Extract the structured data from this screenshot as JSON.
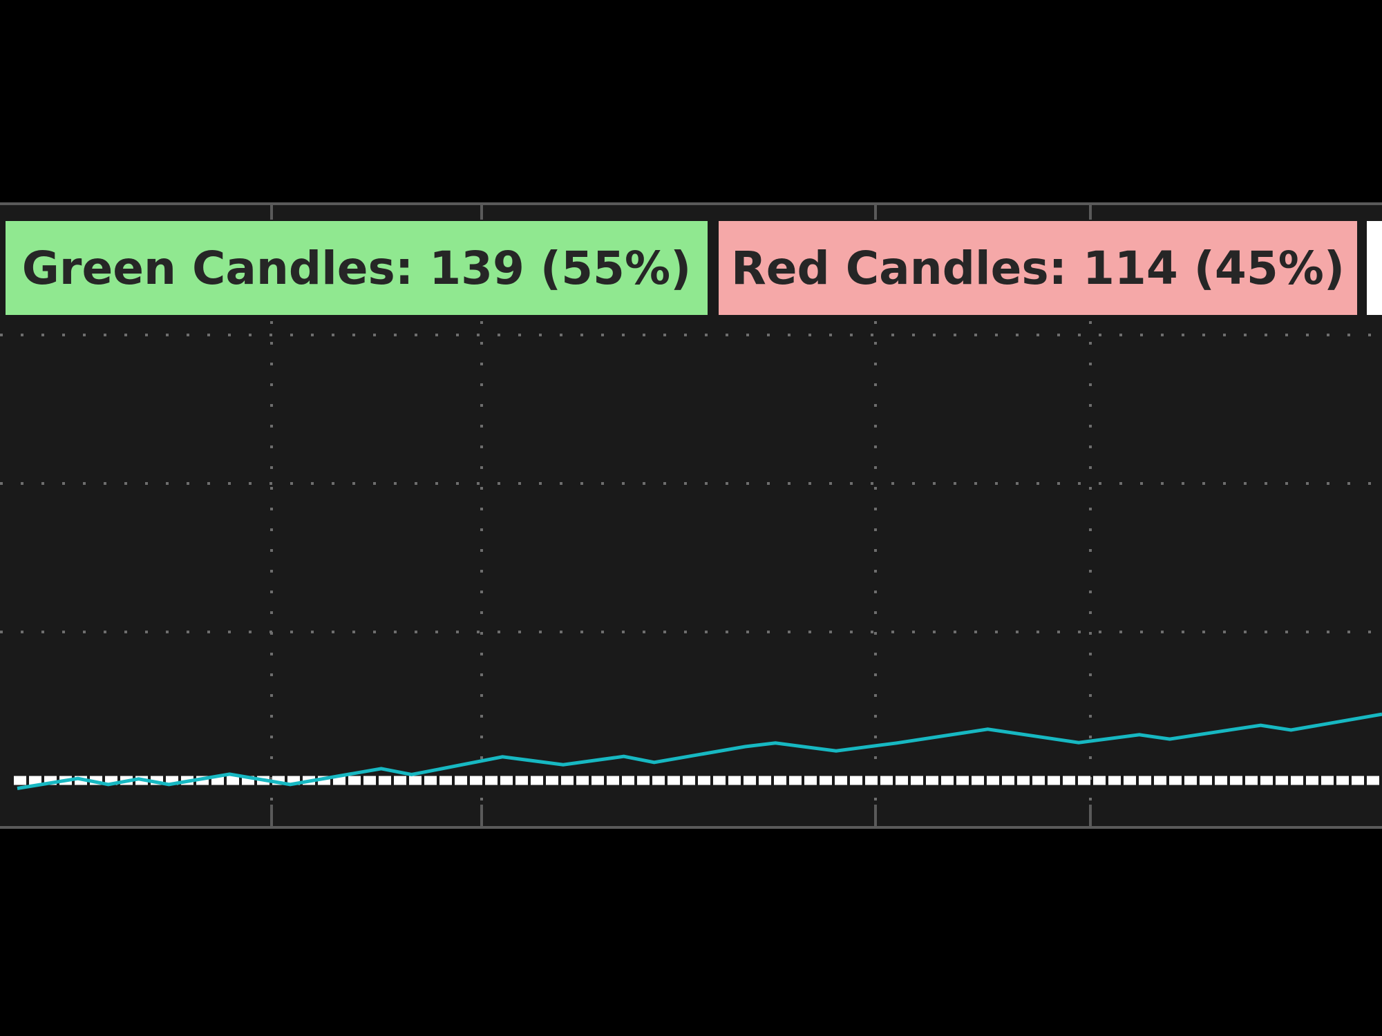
{
  "legend": {
    "green": {
      "label": "Green Candles: 139 (55%)",
      "color": "#90e890"
    },
    "red": {
      "label": "Red Candles: 114 (45%)",
      "color": "#f5a8a8"
    },
    "third_color": "#ffffff"
  },
  "colors": {
    "background": "#000000",
    "panel": "#1a1a1a",
    "frame": "#5a5a5a",
    "grid": "#6e6e6e",
    "series": "#17b8c2",
    "baseline": "#ffffff"
  },
  "chart_data": {
    "type": "line",
    "xlim": [
      0,
      45
    ],
    "ylim": [
      0,
      6
    ],
    "grid": true,
    "baseline_y": 0.7,
    "series": [
      {
        "values": [
          [
            0,
            0.5
          ],
          [
            2,
            0.75
          ],
          [
            3,
            0.6
          ],
          [
            4,
            0.74
          ],
          [
            5,
            0.6
          ],
          [
            7,
            0.86
          ],
          [
            9,
            0.6
          ],
          [
            12,
            1.0
          ],
          [
            13,
            0.85
          ],
          [
            16,
            1.3
          ],
          [
            18,
            1.1
          ],
          [
            20,
            1.31
          ],
          [
            21,
            1.16
          ],
          [
            24,
            1.56
          ],
          [
            25,
            1.65
          ],
          [
            27,
            1.45
          ],
          [
            29,
            1.65
          ],
          [
            32,
            2.0
          ],
          [
            35,
            1.66
          ],
          [
            37,
            1.86
          ],
          [
            38,
            1.75
          ],
          [
            41,
            2.1
          ],
          [
            42,
            1.98
          ],
          [
            45,
            2.38
          ]
        ]
      }
    ]
  }
}
